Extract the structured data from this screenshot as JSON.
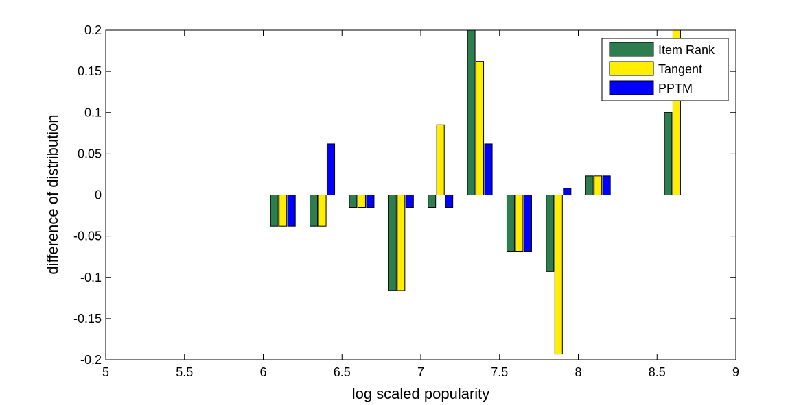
{
  "chart_data": {
    "type": "bar",
    "title": "",
    "xlabel": "log scaled popularity",
    "ylabel": "difference of distribution",
    "xlim": [
      5,
      9
    ],
    "ylim": [
      -0.2,
      0.2
    ],
    "x_ticks": [
      5,
      5.5,
      6,
      6.5,
      7,
      7.5,
      8,
      8.5,
      9
    ],
    "x_tick_labels": [
      "5",
      "5.5",
      "6",
      "6.5",
      "7",
      "7.5",
      "8",
      "8.5",
      "9"
    ],
    "y_ticks": [
      0.2,
      0.15,
      0.1,
      0.05,
      0,
      -0.05,
      -0.1,
      -0.15,
      -0.2
    ],
    "y_tick_labels": [
      "0.2",
      "0.15",
      "0.1",
      "0.05",
      "0",
      "-0.05",
      "-0.1",
      "-0.15",
      "-0.2"
    ],
    "x": [
      6.125,
      6.375,
      6.625,
      6.875,
      7.125,
      7.375,
      7.625,
      7.875,
      8.125,
      8.625
    ],
    "grid": false,
    "legend_position": "top-right",
    "series": [
      {
        "name": "Item Rank",
        "color": "#2e7d4f",
        "values": [
          -0.038,
          -0.038,
          -0.015,
          -0.116,
          -0.015,
          0.2,
          -0.069,
          -0.093,
          0.023,
          0.1
        ]
      },
      {
        "name": "Tangent",
        "color": "#ffee00",
        "values": [
          -0.038,
          -0.038,
          -0.015,
          -0.116,
          0.085,
          0.162,
          -0.069,
          -0.193,
          0.023,
          0.2
        ]
      },
      {
        "name": "PPTM",
        "color": "#0000ff",
        "values": [
          -0.038,
          0.062,
          -0.015,
          -0.015,
          -0.015,
          0.062,
          -0.069,
          0.008,
          0.023,
          0
        ]
      }
    ]
  }
}
